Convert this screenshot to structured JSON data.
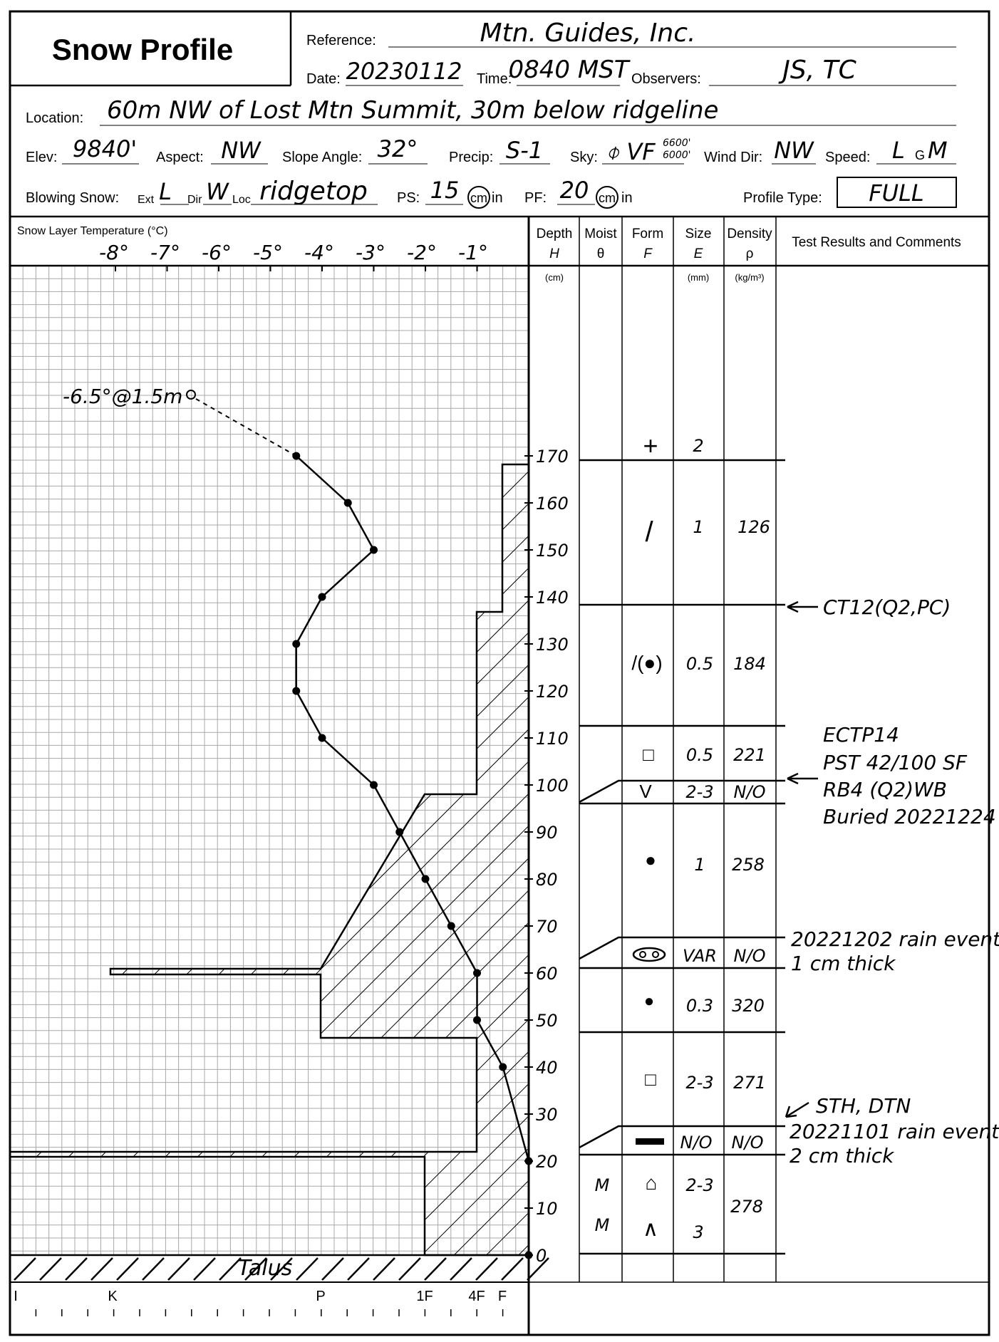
{
  "header": {
    "title": "Snow Profile",
    "labels": {
      "reference": "Reference:",
      "date": "Date:",
      "time": "Time:",
      "observers": "Observers:",
      "location": "Location:",
      "elev": "Elev:",
      "aspect": "Aspect:",
      "slope": "Slope Angle:",
      "precip": "Precip:",
      "sky": "Sky:",
      "wind_dir": "Wind Dir:",
      "speed": "Speed:",
      "blowing": "Blowing Snow:",
      "ext": "Ext",
      "dir": "Dir",
      "loc": "Loc",
      "ps": "PS:",
      "pf": "PF:",
      "cm": "cm",
      "in": "in",
      "profile_type": "Profile Type:"
    },
    "values": {
      "reference": "Mtn. Guides, Inc.",
      "date": "20230112",
      "time": "0840 MST",
      "observers": "JS, TC",
      "location": "60m NW of Lost Mtn Summit, 30m below ridgeline",
      "elev": "9840'",
      "aspect": "NW",
      "slope": "32°",
      "precip": "S-1",
      "sky": "⌽ VF",
      "sky_top": "6600'",
      "sky_bottom": "6000'",
      "wind_dir": "NW",
      "speed_l": "L",
      "speed_g": "G",
      "speed_m": "M",
      "ext": "L",
      "dir": "W",
      "loc": "ridgetop",
      "ps": "15",
      "pf": "20",
      "profile_type": "FULL"
    }
  },
  "columns": {
    "temp_title": "Snow Layer Temperature (°C)",
    "depth": "Depth",
    "depth_sym": "H",
    "depth_unit": "(cm)",
    "moist": "Moist",
    "moist_sym": "θ",
    "form": "Form",
    "form_sym": "F",
    "size": "Size",
    "size_sym": "E",
    "size_unit": "(mm)",
    "density": "Density",
    "density_sym": "ρ",
    "density_unit": "(kg/m³)",
    "comments": "Test Results and Comments"
  },
  "temp_ticks": [
    "-8°",
    "-7°",
    "-6°",
    "-5°",
    "-4°",
    "-3°",
    "-2°",
    "-1°"
  ],
  "depth_ticks": [
    "170",
    "160",
    "150",
    "140",
    "130",
    "120",
    "110",
    "100",
    "90",
    "80",
    "70",
    "60",
    "50",
    "40",
    "30",
    "20",
    "10",
    "0"
  ],
  "hardness_ticks": [
    "I",
    "K",
    "P",
    "1F",
    "4F",
    "F"
  ],
  "air_temp": "-6.5°@1.5m",
  "ground_label": "Talus",
  "temperature_profile": [
    {
      "depth": 170,
      "temp": -4.5
    },
    {
      "depth": 160,
      "temp": -3.5
    },
    {
      "depth": 150,
      "temp": -3.0
    },
    {
      "depth": 140,
      "temp": -4.0
    },
    {
      "depth": 130,
      "temp": -4.5
    },
    {
      "depth": 120,
      "temp": -4.5
    },
    {
      "depth": 110,
      "temp": -4.0
    },
    {
      "depth": 100,
      "temp": -3.0
    },
    {
      "depth": 90,
      "temp": -2.5
    },
    {
      "depth": 80,
      "temp": -2.0
    },
    {
      "depth": 70,
      "temp": -1.5
    },
    {
      "depth": 60,
      "temp": -1.0
    },
    {
      "depth": 50,
      "temp": -1.0
    },
    {
      "depth": 40,
      "temp": -0.5
    },
    {
      "depth": 20,
      "temp": 0.0
    },
    {
      "depth": 0,
      "temp": 0.0
    }
  ],
  "air_temp_value": {
    "temp": -6.5,
    "height_m": 1.5
  },
  "hardness_profile": [
    {
      "from": 169,
      "to": 138,
      "hardness": "F+"
    },
    {
      "from": 138,
      "to": 98,
      "hardness": "4F"
    },
    {
      "from": 98,
      "to": 96,
      "hardness": "F"
    },
    {
      "from": 96,
      "to": 61,
      "hardness": "1F to P"
    },
    {
      "from": 61,
      "to": 60,
      "hardness": "K"
    },
    {
      "from": 60,
      "to": 47,
      "hardness": "P"
    },
    {
      "from": 47,
      "to": 22,
      "hardness": "4F"
    },
    {
      "from": 22,
      "to": 21,
      "hardness": "I"
    },
    {
      "from": 21,
      "to": 0,
      "hardness": "1F"
    }
  ],
  "layers": [
    {
      "form": "+",
      "size": "2",
      "density": ""
    },
    {
      "form": "/",
      "size": "1",
      "density": "126"
    },
    {
      "form": "/(●)",
      "size": "0.5",
      "density": "184"
    },
    {
      "form": "□",
      "size": "0.5",
      "density": "221"
    },
    {
      "form": "V",
      "size": "2-3",
      "density": "N/O"
    },
    {
      "form": "●",
      "size": "1",
      "density": "258"
    },
    {
      "form": "oo",
      "size": "VAR",
      "density": "N/O"
    },
    {
      "form": "●",
      "size": "0.3",
      "density": "320"
    },
    {
      "form": "□",
      "size": "2-3",
      "density": "271"
    },
    {
      "form": "▬",
      "size": "N/O",
      "density": "N/O"
    },
    {
      "moist": "M",
      "form": "⌂",
      "size": "2-3",
      "density": "278"
    },
    {
      "moist": "M",
      "form": "∧",
      "size": "3",
      "density": ""
    }
  ],
  "comments": {
    "ct": "CT12(Q2,PC)",
    "ectp": "ECTP14",
    "pst": "PST 42/100 SF",
    "rb": "RB4 (Q2)WB",
    "buried": "Buried 20221224",
    "rain1": "20221202 rain event",
    "rain1b": "1 cm thick",
    "sth": "STH, DTN",
    "rain2": "20221101 rain event",
    "rain2b": "2 cm thick"
  }
}
